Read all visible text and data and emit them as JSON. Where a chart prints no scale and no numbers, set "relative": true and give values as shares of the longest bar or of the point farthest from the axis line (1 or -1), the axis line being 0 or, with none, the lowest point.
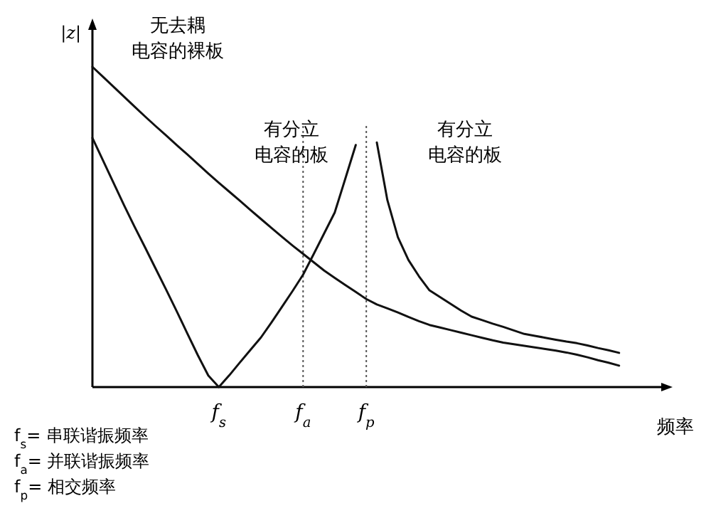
{
  "chart_data": {
    "type": "line",
    "relative": true,
    "xlabel": "频率",
    "ylabel": "|z|",
    "categories": [
      null,
      null,
      null,
      null,
      null,
      null,
      null,
      null,
      null,
      null,
      null,
      null,
      "f$_{s}$",
      null,
      null,
      null,
      null,
      null,
      null,
      null,
      "f$_{a}$",
      null,
      null,
      null,
      null,
      null,
      "f$_{p}$",
      null,
      null,
      null,
      null,
      null,
      null,
      null,
      null,
      null,
      null,
      null,
      null,
      null,
      null,
      null,
      null,
      null,
      null,
      null,
      null,
      null,
      null,
      null,
      null
    ],
    "series": [
      {
        "name": "无去耦电容的裸板",
        "color": "#111111",
        "values": [
          1.0,
          0.969,
          0.938,
          0.907,
          0.876,
          0.845,
          0.815,
          0.786,
          0.756,
          0.727,
          0.697,
          0.667,
          0.638,
          0.61,
          0.582,
          0.553,
          0.525,
          0.497,
          0.469,
          0.442,
          0.416,
          0.39,
          0.364,
          0.341,
          0.319,
          0.297,
          0.275,
          0.258,
          0.246,
          0.233,
          0.219,
          0.206,
          0.194,
          0.186,
          0.178,
          0.17,
          0.162,
          0.154,
          0.146,
          0.139,
          0.134,
          0.129,
          0.124,
          0.119,
          0.114,
          0.108,
          0.101,
          0.093,
          0.084,
          0.076,
          0.067
        ]
      },
      {
        "name": "有分立电容的板",
        "color": "#111111",
        "values": [
          0.778,
          0.708,
          0.638,
          0.568,
          0.501,
          0.436,
          0.37,
          0.304,
          0.237,
          0.168,
          0.1,
          0.036,
          0,
          0.037,
          0.077,
          0.116,
          0.155,
          0.202,
          0.251,
          0.3,
          0.351,
          0.415,
          0.48,
          0.545,
          0.65,
          0.756,
          null,
          null,
          null,
          null,
          null,
          null,
          null,
          null,
          null,
          null,
          null,
          null,
          null,
          null,
          null,
          null,
          null,
          null,
          null,
          null,
          null,
          null,
          null,
          null,
          null
        ]
      },
      {
        "name": "有分立电容的板",
        "color": "#111111",
        "values": [
          null,
          null,
          null,
          null,
          null,
          null,
          null,
          null,
          null,
          null,
          null,
          null,
          null,
          null,
          null,
          null,
          null,
          null,
          null,
          null,
          null,
          null,
          null,
          null,
          null,
          null,
          null,
          0.764,
          0.584,
          0.468,
          0.397,
          0.346,
          0.302,
          0.281,
          0.26,
          0.239,
          0.22,
          0.209,
          0.198,
          0.188,
          0.177,
          0.166,
          0.16,
          0.154,
          0.148,
          0.142,
          0.137,
          0.13,
          0.122,
          0.115,
          0.107
        ]
      }
    ],
    "ref_lines": [
      {
        "axis": "x",
        "value": "f$_{a}$",
        "line_style": "dotted",
        "color": "#555555"
      },
      {
        "axis": "x",
        "value": "f$_{p}$",
        "line_style": "dotted",
        "color": "#555555"
      }
    ],
    "annotations": [
      "f$_{s}$= 串联谐振频率",
      "f$_{a}$= 并联谐振频率",
      "f$_{p}$= 相交频率"
    ]
  }
}
